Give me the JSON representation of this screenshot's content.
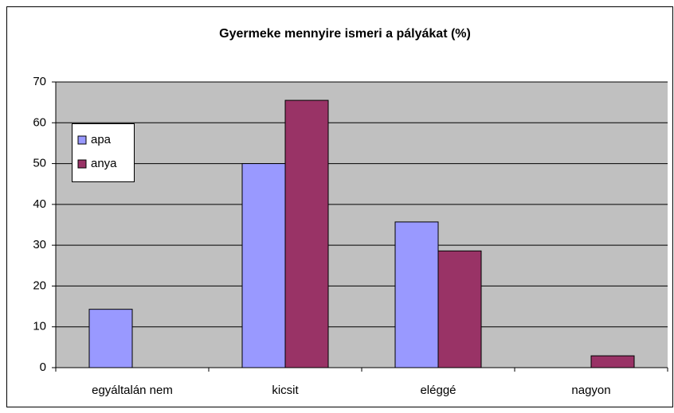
{
  "chart_data": {
    "type": "bar",
    "title": "Gyermeke mennyire ismeri a pályákat (%)",
    "categories": [
      "egyáltalán nem",
      "kicsit",
      "eléggé",
      "nagyon"
    ],
    "series": [
      {
        "name": "apa",
        "color": "#9999ff",
        "values": [
          14.3,
          50,
          35.7,
          0
        ]
      },
      {
        "name": "anya",
        "color": "#993366",
        "values": [
          0,
          65.5,
          28.6,
          2.9
        ]
      }
    ],
    "ylim": [
      0,
      70
    ],
    "yticks": [
      0,
      10,
      20,
      30,
      40,
      50,
      60,
      70
    ],
    "grid": true,
    "legend": "left"
  }
}
